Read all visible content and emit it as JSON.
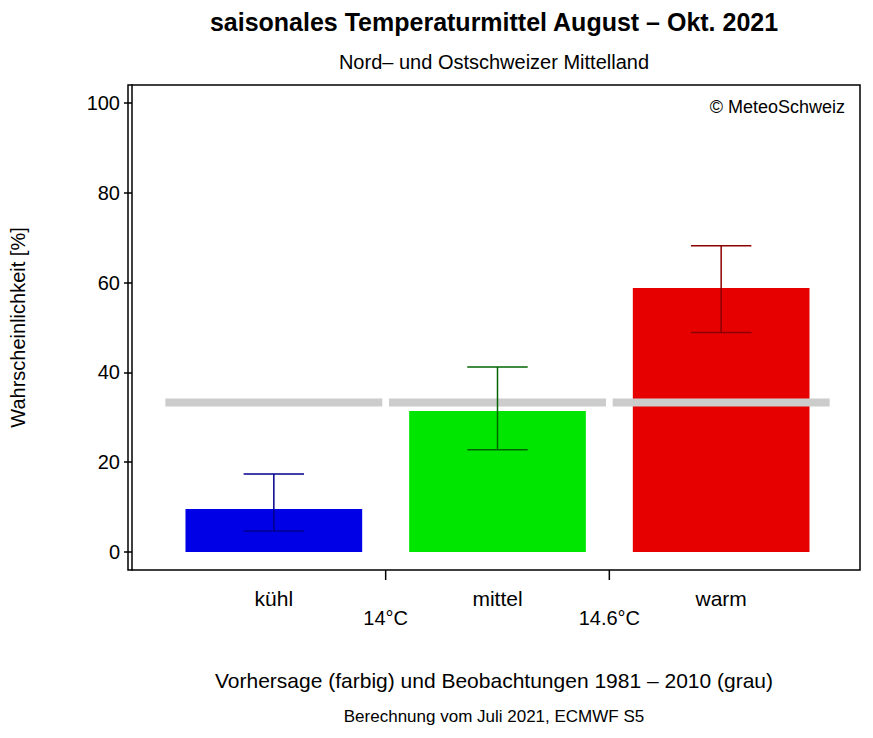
{
  "chart_data": {
    "type": "bar",
    "title": "saisonales Temperaturmittel August – Okt. 2021",
    "subtitle": "Nord– und Ostschweizer Mittelland",
    "y_label": "Wahrscheinlichkeit [%]",
    "categories": [
      "kühl",
      "mittel",
      "warm"
    ],
    "values": [
      9.6,
      31.4,
      58.8
    ],
    "colors": [
      "#0000e6",
      "#00e600",
      "#e60000"
    ],
    "error_bars": {
      "low": [
        4.7,
        22.8,
        48.9
      ],
      "high": [
        17.4,
        41.2,
        68.2
      ],
      "colors": [
        "#00008b",
        "#006400",
        "#8b0000"
      ]
    },
    "climatology": {
      "values": [
        33.3,
        33.3,
        33.3
      ],
      "color": "#cccccc"
    },
    "thresholds": [
      {
        "value": 14,
        "label": "14°C"
      },
      {
        "value": 14.6,
        "label": "14.6°C"
      }
    ],
    "annotations": [
      "© MeteoSchweiz"
    ],
    "caption": [
      "Vorhersage (farbig) und Beobachtungen 1981 – 2010 (grau)",
      "Berechnung vom Juli 2021, ECMWF S5"
    ],
    "ylim": [
      -4,
      104
    ],
    "yticks": [
      0,
      20,
      40,
      60,
      80,
      100
    ],
    "grid": false
  }
}
